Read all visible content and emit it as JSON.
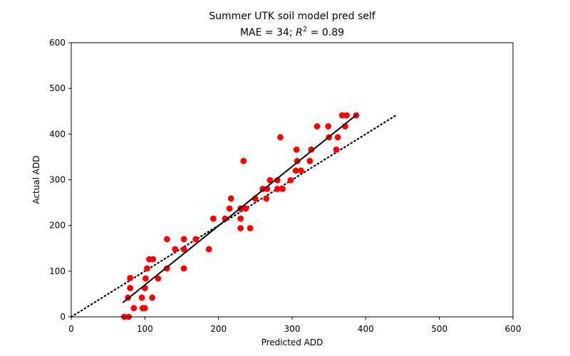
{
  "chart_data": {
    "type": "scatter",
    "title_line1": "Summer UTK soil model pred self",
    "title_line2_prefix": "MAE = 34; ",
    "title_line2_r": "R",
    "title_line2_sup": "2",
    "title_line2_suffix": " = 0.89",
    "xlabel": "Predicted ADD",
    "ylabel": "Actual ADD",
    "xlim": [
      0,
      600
    ],
    "ylim": [
      0,
      600
    ],
    "xticks": [
      0,
      100,
      200,
      300,
      400,
      500,
      600
    ],
    "yticks": [
      0,
      100,
      200,
      300,
      400,
      500,
      600
    ],
    "grid": false,
    "point_color": "#ff0000",
    "points": [
      [
        72,
        0
      ],
      [
        78,
        0
      ],
      [
        85,
        19
      ],
      [
        97,
        19
      ],
      [
        100,
        19
      ],
      [
        77,
        42
      ],
      [
        96,
        42
      ],
      [
        110,
        42
      ],
      [
        100,
        63
      ],
      [
        80,
        63
      ],
      [
        118,
        84
      ],
      [
        101,
        84
      ],
      [
        80,
        85
      ],
      [
        103,
        106
      ],
      [
        130,
        106
      ],
      [
        153,
        106
      ],
      [
        106,
        126
      ],
      [
        111,
        126
      ],
      [
        141,
        148
      ],
      [
        153,
        148
      ],
      [
        187,
        148
      ],
      [
        130,
        170
      ],
      [
        153,
        170
      ],
      [
        169,
        170
      ],
      [
        230,
        194
      ],
      [
        243,
        194
      ],
      [
        230,
        215
      ],
      [
        193,
        215
      ],
      [
        209,
        215
      ],
      [
        215,
        237
      ],
      [
        230,
        237
      ],
      [
        237,
        237
      ],
      [
        217,
        259
      ],
      [
        250,
        259
      ],
      [
        265,
        259
      ],
      [
        266,
        280
      ],
      [
        280,
        280
      ],
      [
        287,
        280
      ],
      [
        260,
        280
      ],
      [
        270,
        299
      ],
      [
        280,
        299
      ],
      [
        298,
        299
      ],
      [
        305,
        320
      ],
      [
        312,
        320
      ],
      [
        307,
        341
      ],
      [
        324,
        341
      ],
      [
        234,
        341
      ],
      [
        306,
        366
      ],
      [
        326,
        366
      ],
      [
        360,
        366
      ],
      [
        284,
        393
      ],
      [
        350,
        393
      ],
      [
        362,
        393
      ],
      [
        334,
        417
      ],
      [
        349,
        417
      ],
      [
        372,
        417
      ],
      [
        368,
        441
      ],
      [
        374,
        441
      ],
      [
        387,
        441
      ]
    ],
    "fit_line": {
      "x": [
        70,
        388
      ],
      "y": [
        31,
        443
      ],
      "style": "solid",
      "color": "#000000"
    },
    "identity_line": {
      "x": [
        0,
        440
      ],
      "y": [
        0,
        440
      ],
      "style": "dotted",
      "color": "#000000"
    }
  }
}
